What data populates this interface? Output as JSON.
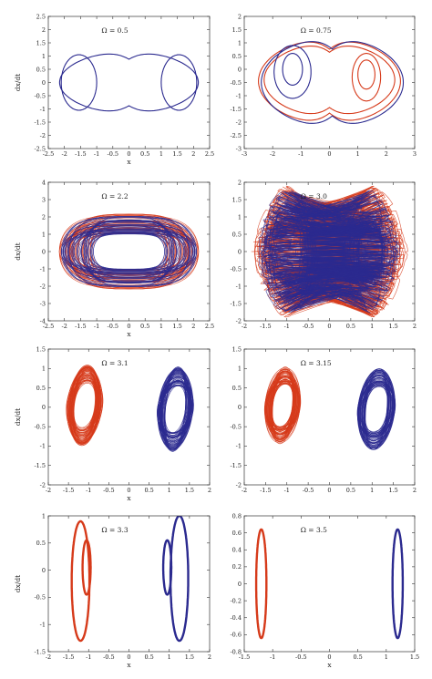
{
  "chart_data": [
    {
      "type": "line",
      "title": "Ω = 0.5",
      "xlabel": "x",
      "ylabel": "dx/dt",
      "xlim": [
        -2.5,
        2.5
      ],
      "ylim": [
        -2.5,
        2.5
      ],
      "xticks": [
        "-2.5",
        "-2",
        "-1.5",
        "-1",
        "-0.5",
        "0",
        "0.5",
        "1",
        "1.5",
        "2",
        "2.5"
      ],
      "yticks": [
        "2.5",
        "2",
        "1.5",
        "1",
        "0.5",
        "0",
        "-0.5",
        "-1",
        "-1.5",
        "-2",
        "-2.5"
      ],
      "grid": false,
      "series": [
        {
          "color": "#2b2a8f",
          "curves": [
            {
              "shape": "figure8",
              "cx": 0,
              "cy": 0,
              "rx": 2.15,
              "ry": 1.6
            },
            {
              "shape": "loop",
              "cx": -1.55,
              "cy": 0,
              "rx": 0.55,
              "ry": 1.05
            },
            {
              "shape": "loop",
              "cx": 1.55,
              "cy": 0,
              "rx": 0.55,
              "ry": 1.05
            }
          ]
        }
      ]
    },
    {
      "type": "line",
      "title": "Ω = 0.75",
      "xlabel": "",
      "ylabel": "",
      "xlim": [
        -3,
        3
      ],
      "ylim": [
        -3,
        2
      ],
      "xticks": [
        "-3",
        "-2",
        "-1",
        "0",
        "1",
        "2",
        "3"
      ],
      "yticks": [
        "2",
        "1.5",
        "1",
        "0.5",
        "0",
        "-0.5",
        "-1",
        "-1.5",
        "-2",
        "-2.5",
        "-3"
      ],
      "grid": false,
      "series": [
        {
          "color": "#d63a1a",
          "curves": [
            {
              "shape": "figure8",
              "cx": 0,
              "cy": -0.45,
              "rx": 2.5,
              "ry": 2.2
            },
            {
              "shape": "figure8",
              "cx": 0,
              "cy": -0.4,
              "rx": 2.3,
              "ry": 1.9
            },
            {
              "shape": "loop",
              "cx": 1.3,
              "cy": -0.3,
              "rx": 0.5,
              "ry": 0.9
            },
            {
              "shape": "loop",
              "cx": 1.3,
              "cy": -0.2,
              "rx": 0.3,
              "ry": 0.55
            }
          ]
        },
        {
          "color": "#2b2a8f",
          "curves": [
            {
              "shape": "figure8",
              "cx": 0.1,
              "cy": -0.5,
              "rx": 2.5,
              "ry": 2.3
            },
            {
              "shape": "loop",
              "cx": -1.3,
              "cy": -0.1,
              "rx": 0.65,
              "ry": 1.0
            },
            {
              "shape": "loop",
              "cx": -1.3,
              "cy": 0.0,
              "rx": 0.35,
              "ry": 0.6
            }
          ]
        }
      ]
    },
    {
      "type": "line",
      "title": "Ω = 2.2",
      "xlabel": "x",
      "ylabel": "dx/dt",
      "xlim": [
        -2.5,
        2.5
      ],
      "ylim": [
        -4,
        4
      ],
      "xticks": [
        "-2.5",
        "-2",
        "-1.5",
        "-1",
        "-0.5",
        "0",
        "0.5",
        "1",
        "1.5",
        "2",
        "2.5"
      ],
      "yticks": [
        "4",
        "3",
        "2",
        "1",
        "0",
        "-1",
        "-2",
        "-3",
        "-4"
      ],
      "grid": false,
      "series": [
        {
          "color": "#d63a1a",
          "curves": [
            {
              "shape": "band",
              "cx": 0,
              "cy": 0,
              "rx": 2.2,
              "ry": 3.1
            }
          ]
        },
        {
          "color": "#2b2a8f",
          "curves": [
            {
              "shape": "band",
              "cx": 0,
              "cy": 0,
              "rx": 2.1,
              "ry": 2.9
            }
          ]
        }
      ]
    },
    {
      "type": "line",
      "title": "Ω = 3.0",
      "xlabel": "",
      "ylabel": "",
      "xlim": [
        -2,
        2
      ],
      "ylim": [
        -2,
        2
      ],
      "xticks": [
        "-2",
        "-1.5",
        "-1",
        "-0.5",
        "0",
        "0.5",
        "1",
        "1.5",
        "2"
      ],
      "yticks": [
        "2",
        "1.5",
        "1",
        "0.5",
        "0",
        "-0.5",
        "-1",
        "-1.5",
        "-2"
      ],
      "grid": false,
      "series": [
        {
          "color": "#d63a1a",
          "curves": [
            {
              "shape": "chaos8",
              "cx": 0,
              "cy": 0,
              "rx": 1.85,
              "ry": 1.9
            }
          ]
        },
        {
          "color": "#2b2a8f",
          "curves": [
            {
              "shape": "chaos8",
              "cx": 0,
              "cy": 0,
              "rx": 1.75,
              "ry": 1.8
            }
          ]
        }
      ]
    },
    {
      "type": "line",
      "title": "Ω = 3.1",
      "xlabel": "x",
      "ylabel": "dx/dt",
      "xlim": [
        -2,
        2
      ],
      "ylim": [
        -2,
        1.5
      ],
      "xticks": [
        "-2",
        "-1.5",
        "-1",
        "-0.5",
        "0",
        "0.5",
        "1",
        "1.5",
        "2"
      ],
      "yticks": [
        "1.5",
        "1",
        "0.5",
        "0",
        "-0.5",
        "-1",
        "-1.5",
        "-2"
      ],
      "grid": false,
      "series": [
        {
          "color": "#d63a1a",
          "curves": [
            {
              "shape": "blob",
              "cx": -1.1,
              "cy": 0.05,
              "rx": 0.45,
              "ry": 1.05
            }
          ]
        },
        {
          "color": "#2b2a8f",
          "curves": [
            {
              "shape": "blob",
              "cx": 1.15,
              "cy": -0.05,
              "rx": 0.45,
              "ry": 1.1
            }
          ]
        }
      ]
    },
    {
      "type": "line",
      "title": "Ω = 3.15",
      "xlabel": "",
      "ylabel": "",
      "xlim": [
        -2,
        2
      ],
      "ylim": [
        -2,
        1.5
      ],
      "xticks": [
        "-2",
        "-1.5",
        "-1",
        "-0.5",
        "0",
        "0.5",
        "1",
        "1.5",
        "2"
      ],
      "yticks": [
        "1.5",
        "1",
        "0.5",
        "0",
        "-0.5",
        "-1",
        "-1.5",
        "-2"
      ],
      "grid": false,
      "series": [
        {
          "color": "#d63a1a",
          "curves": [
            {
              "shape": "blob",
              "cx": -1.1,
              "cy": 0.05,
              "rx": 0.42,
              "ry": 1.0
            }
          ]
        },
        {
          "color": "#2b2a8f",
          "curves": [
            {
              "shape": "blob",
              "cx": 1.1,
              "cy": -0.05,
              "rx": 0.45,
              "ry": 1.05
            }
          ]
        }
      ]
    },
    {
      "type": "line",
      "title": "Ω = 3.3",
      "xlabel": "x",
      "ylabel": "dx/dt",
      "xlim": [
        -2,
        2
      ],
      "ylim": [
        -1.5,
        1
      ],
      "xticks": [
        "-2",
        "-1.5",
        "-1",
        "-0.5",
        "0",
        "0.5",
        "1",
        "1.5",
        "2"
      ],
      "yticks": [
        "1",
        "0.5",
        "0",
        "-0.5",
        "-1",
        "-1.5"
      ],
      "grid": false,
      "series": [
        {
          "color": "#d63a1a",
          "curves": [
            {
              "shape": "loop",
              "cx": -1.2,
              "cy": -0.2,
              "rx": 0.22,
              "ry": 1.1
            },
            {
              "shape": "loop",
              "cx": -1.05,
              "cy": 0.05,
              "rx": 0.1,
              "ry": 0.5
            }
          ]
        },
        {
          "color": "#2b2a8f",
          "curves": [
            {
              "shape": "loop",
              "cx": 1.25,
              "cy": -0.15,
              "rx": 0.22,
              "ry": 1.15
            },
            {
              "shape": "loop",
              "cx": 0.95,
              "cy": 0.05,
              "rx": 0.1,
              "ry": 0.5
            }
          ]
        }
      ]
    },
    {
      "type": "line",
      "title": "Ω = 3.5",
      "xlabel": "x",
      "ylabel": "",
      "xlim": [
        -1.5,
        1.5
      ],
      "ylim": [
        -0.8,
        0.8
      ],
      "xticks": [
        "-1.5",
        "-1",
        "-0.5",
        "0",
        "0.5",
        "1",
        "1.5"
      ],
      "yticks": [
        "0.8",
        "0.6",
        "0.4",
        "0.2",
        "0",
        "-0.2",
        "-0.4",
        "-0.6",
        "-0.8"
      ],
      "grid": false,
      "series": [
        {
          "color": "#d63a1a",
          "curves": [
            {
              "shape": "loop",
              "cx": -1.2,
              "cy": 0,
              "rx": 0.09,
              "ry": 0.64
            }
          ]
        },
        {
          "color": "#2b2a8f",
          "curves": [
            {
              "shape": "loop",
              "cx": 1.2,
              "cy": 0,
              "rx": 0.09,
              "ry": 0.64
            }
          ]
        }
      ]
    }
  ]
}
